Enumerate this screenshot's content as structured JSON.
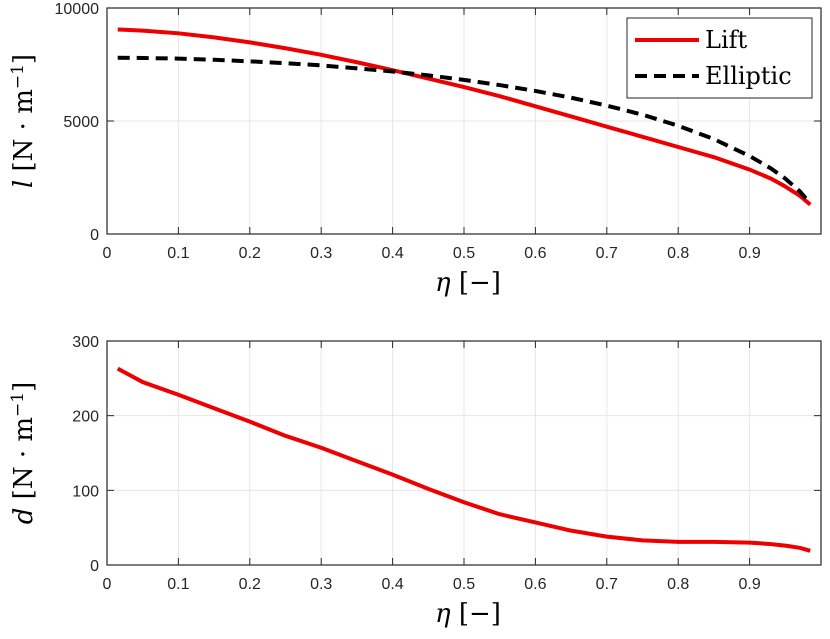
{
  "chart_data": [
    {
      "type": "line",
      "xlabel": {
        "symbol": "η",
        "unit": "[−]"
      },
      "ylabel": {
        "symbol": "l",
        "unit": "[N · m",
        "exp": "−1",
        "close": "]"
      },
      "xlim": [
        0,
        1
      ],
      "ylim": [
        0,
        10000
      ],
      "xticks": [
        0,
        0.1,
        0.2,
        0.3,
        0.4,
        0.5,
        0.6,
        0.7,
        0.8,
        0.9
      ],
      "yticks": [
        0,
        5000,
        10000
      ],
      "grid": true,
      "legend_position": "top-right",
      "series": [
        {
          "name": "Lift",
          "color": "#ee0000",
          "dash": "solid",
          "x": [
            0.015,
            0.05,
            0.1,
            0.15,
            0.2,
            0.25,
            0.3,
            0.35,
            0.4,
            0.45,
            0.5,
            0.55,
            0.6,
            0.65,
            0.7,
            0.75,
            0.8,
            0.85,
            0.9,
            0.93,
            0.95,
            0.97,
            0.985
          ],
          "values": [
            9050,
            9000,
            8880,
            8700,
            8480,
            8220,
            7930,
            7600,
            7250,
            6880,
            6500,
            6100,
            5650,
            5200,
            4750,
            4300,
            3850,
            3400,
            2850,
            2450,
            2100,
            1700,
            1300
          ]
        },
        {
          "name": "Elliptic",
          "color": "#000000",
          "dash": "dashed",
          "x": [
            0.015,
            0.05,
            0.1,
            0.15,
            0.2,
            0.25,
            0.3,
            0.35,
            0.4,
            0.45,
            0.5,
            0.55,
            0.6,
            0.65,
            0.7,
            0.75,
            0.8,
            0.85,
            0.9,
            0.93,
            0.95,
            0.97,
            0.985
          ],
          "values": [
            7800,
            7790,
            7760,
            7710,
            7640,
            7560,
            7460,
            7330,
            7190,
            7020,
            6820,
            6590,
            6330,
            6030,
            5680,
            5280,
            4790,
            4200,
            3450,
            2900,
            2450,
            1900,
            1350
          ]
        }
      ]
    },
    {
      "type": "line",
      "xlabel": {
        "symbol": "η",
        "unit": "[−]"
      },
      "ylabel": {
        "symbol": "d",
        "unit": "[N · m",
        "exp": "−1",
        "close": "]"
      },
      "xlim": [
        0,
        1
      ],
      "ylim": [
        0,
        300
      ],
      "xticks": [
        0,
        0.1,
        0.2,
        0.3,
        0.4,
        0.5,
        0.6,
        0.7,
        0.8,
        0.9
      ],
      "yticks": [
        0,
        100,
        200,
        300
      ],
      "grid": true,
      "series": [
        {
          "color": "#ee0000",
          "dash": "solid",
          "x": [
            0.015,
            0.05,
            0.1,
            0.15,
            0.2,
            0.25,
            0.3,
            0.35,
            0.4,
            0.45,
            0.5,
            0.55,
            0.6,
            0.65,
            0.7,
            0.75,
            0.8,
            0.85,
            0.9,
            0.93,
            0.95,
            0.97,
            0.985
          ],
          "values": [
            263,
            245,
            228,
            210,
            192,
            173,
            157,
            139,
            121,
            102,
            84,
            68,
            57,
            46,
            38,
            33,
            31,
            31,
            30,
            28,
            26,
            23,
            19
          ]
        }
      ]
    }
  ]
}
